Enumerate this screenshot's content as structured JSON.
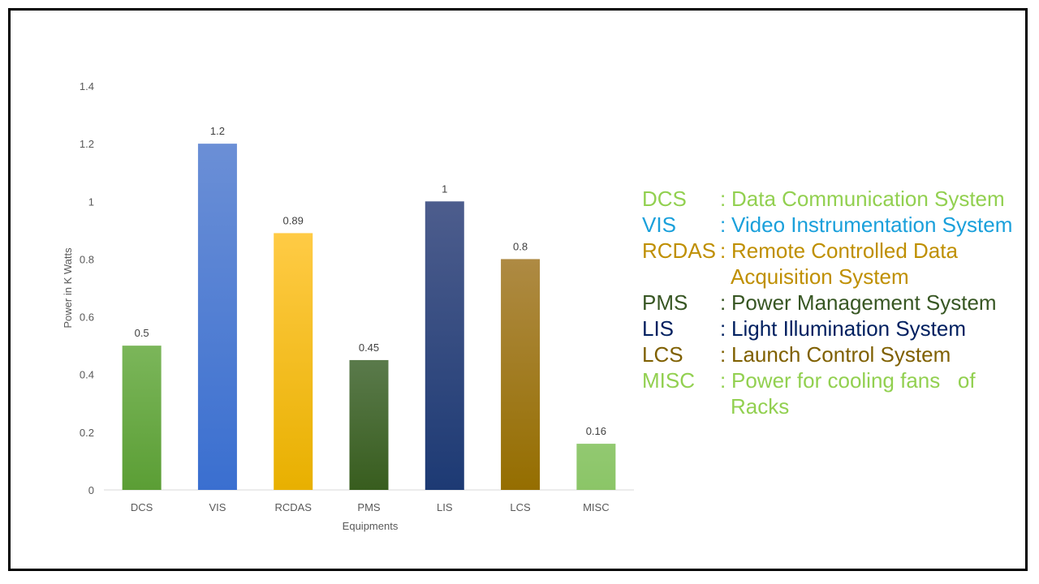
{
  "chart_data": {
    "type": "bar",
    "categories": [
      "DCS",
      "VIS",
      "RCDAS",
      "PMS",
      "LIS",
      "LCS",
      "MISC"
    ],
    "values": [
      0.5,
      1.2,
      0.89,
      0.45,
      1,
      0.8,
      0.16
    ],
    "data_labels": [
      "0.5",
      "1.2",
      "0.89",
      "0.45",
      "1",
      "0.8",
      "0.16"
    ],
    "bar_colors": [
      [
        "#7bb65a",
        "#5b9e35"
      ],
      [
        "#6b8fd6",
        "#3a6fd0"
      ],
      [
        "#ffcb45",
        "#e8b000"
      ],
      [
        "#5a7a4b",
        "#385d1e"
      ],
      [
        "#4d5d8d",
        "#1d3a74"
      ],
      [
        "#ae8a43",
        "#956e00"
      ],
      [
        "#92c971",
        "#8bc567"
      ]
    ],
    "title": "",
    "xlabel": "Equipments",
    "ylabel": "Power in K Watts",
    "ylim": [
      0,
      1.4
    ],
    "yticks": [
      "0",
      "0.2",
      "0.4",
      "0.6",
      "0.8",
      "1",
      "1.2",
      "1.4"
    ],
    "grid": false
  },
  "legend": {
    "items": [
      {
        "abbr": "DCS",
        "colon": ":",
        "desc": "Data Communication System",
        "cont": "",
        "color": "#92d050"
      },
      {
        "abbr": "VIS",
        "colon": ":",
        "desc": "Video Instrumentation System",
        "cont": "",
        "color": "#1aa0db"
      },
      {
        "abbr": "RCDAS",
        "colon": ":",
        "desc": "Remote Controlled Data",
        "cont": "Acquisition System",
        "color": "#bf8f00"
      },
      {
        "abbr": "PMS",
        "colon": ":",
        "desc": "Power Management System",
        "cont": "",
        "color": "#375623"
      },
      {
        "abbr": "LIS",
        "colon": ":",
        "desc": "Light Illumination System",
        "cont": "",
        "color": "#002060"
      },
      {
        "abbr": "LCS",
        "colon": ":",
        "desc": "Launch Control System",
        "cont": "",
        "color": "#7f6000"
      },
      {
        "abbr": "MISC",
        "colon": ":",
        "desc": "Power for cooling fans   of",
        "cont": "Racks",
        "color": "#92d050"
      }
    ]
  }
}
